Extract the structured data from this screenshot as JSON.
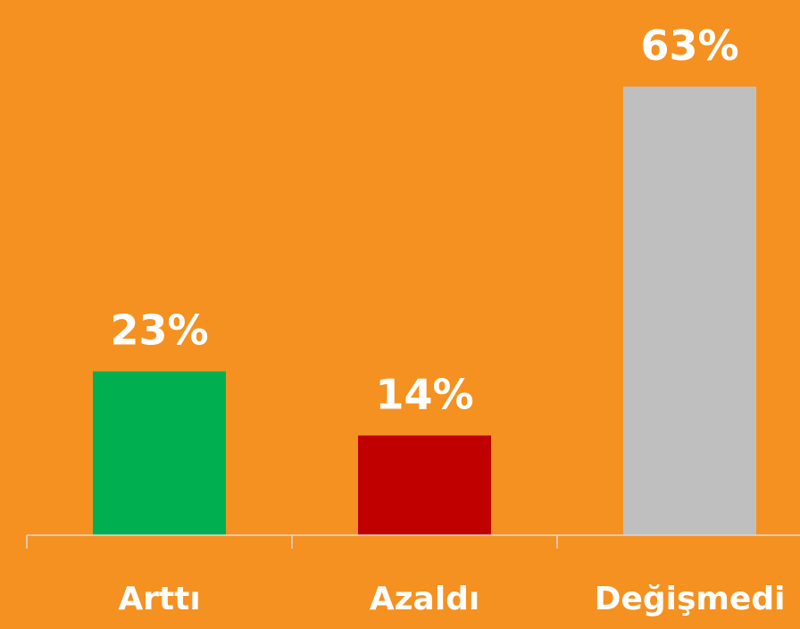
{
  "chart_data": {
    "type": "bar",
    "categories": [
      "Arttı",
      "Azaldı",
      "Değişmedi"
    ],
    "values": [
      23,
      14,
      63
    ],
    "value_labels": [
      "23%",
      "14%",
      "63%"
    ],
    "colors": [
      "#00b050",
      "#c00000",
      "#bfbfbf"
    ]
  }
}
